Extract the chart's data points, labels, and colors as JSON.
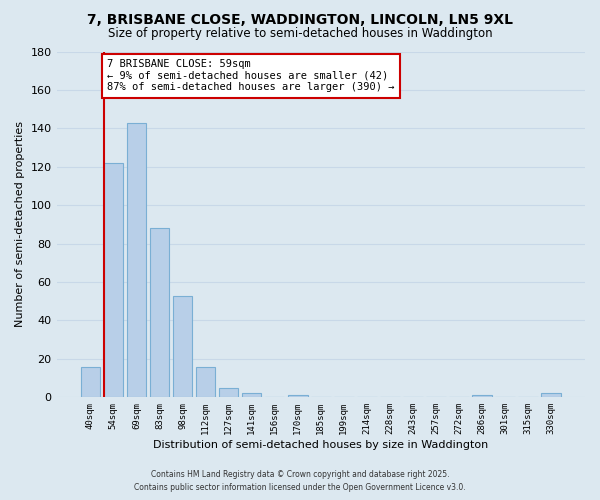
{
  "title": "7, BRISBANE CLOSE, WADDINGTON, LINCOLN, LN5 9XL",
  "subtitle": "Size of property relative to semi-detached houses in Waddington",
  "xlabel": "Distribution of semi-detached houses by size in Waddington",
  "ylabel": "Number of semi-detached properties",
  "bar_labels": [
    "40sqm",
    "54sqm",
    "69sqm",
    "83sqm",
    "98sqm",
    "112sqm",
    "127sqm",
    "141sqm",
    "156sqm",
    "170sqm",
    "185sqm",
    "199sqm",
    "214sqm",
    "228sqm",
    "243sqm",
    "257sqm",
    "272sqm",
    "286sqm",
    "301sqm",
    "315sqm",
    "330sqm"
  ],
  "bar_values": [
    16,
    122,
    143,
    88,
    53,
    16,
    5,
    2,
    0,
    1,
    0,
    0,
    0,
    0,
    0,
    0,
    0,
    1,
    0,
    0,
    2
  ],
  "bar_color": "#b8cfe8",
  "bar_edge_color": "#7aafd4",
  "vline_color": "#cc0000",
  "annotation_text": "7 BRISBANE CLOSE: 59sqm\n← 9% of semi-detached houses are smaller (42)\n87% of semi-detached houses are larger (390) →",
  "annotation_box_color": "#ffffff",
  "annotation_box_edge": "#cc0000",
  "ylim": [
    0,
    180
  ],
  "yticks": [
    0,
    20,
    40,
    60,
    80,
    100,
    120,
    140,
    160,
    180
  ],
  "grid_color": "#c8d8e8",
  "background_color": "#dce8f0",
  "footer_line1": "Contains HM Land Registry data © Crown copyright and database right 2025.",
  "footer_line2": "Contains public sector information licensed under the Open Government Licence v3.0."
}
